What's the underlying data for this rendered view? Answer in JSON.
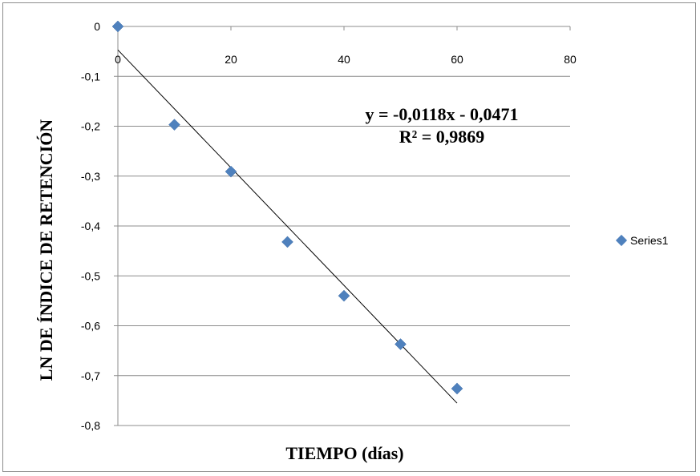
{
  "chart_data": {
    "type": "scatter",
    "title": "",
    "xlabel": "TIEMPO (días)",
    "ylabel": "LN DE ÍNDICE DE RETENCIÓN",
    "xlim": [
      0,
      80
    ],
    "ylim": [
      -0.8,
      0
    ],
    "x_ticks": [
      0,
      20,
      40,
      60,
      80
    ],
    "y_ticks": [
      0,
      -0.1,
      -0.2,
      -0.3,
      -0.4,
      -0.5,
      -0.6,
      -0.7,
      -0.8
    ],
    "x_tick_labels": [
      "0",
      "20",
      "40",
      "60",
      "80"
    ],
    "y_tick_labels": [
      "0",
      "-0,1",
      "-0,2",
      "-0,3",
      "-0,4",
      "-0,5",
      "-0,6",
      "-0,7",
      "-0,8"
    ],
    "grid": "horizontal",
    "legend_position": "right",
    "series": [
      {
        "name": "Series1",
        "color": "#4f81bd",
        "marker": "diamond",
        "x": [
          0,
          10,
          20,
          30,
          40,
          50,
          60
        ],
        "y": [
          0,
          -0.197,
          -0.291,
          -0.432,
          -0.54,
          -0.637,
          -0.726
        ]
      }
    ],
    "trendline": {
      "type": "linear",
      "slope": -0.0118,
      "intercept": -0.0471,
      "x_range": [
        0,
        60
      ],
      "equation": "y = -0,0118x - 0,0471",
      "r_squared": "R² = 0,9869"
    }
  }
}
